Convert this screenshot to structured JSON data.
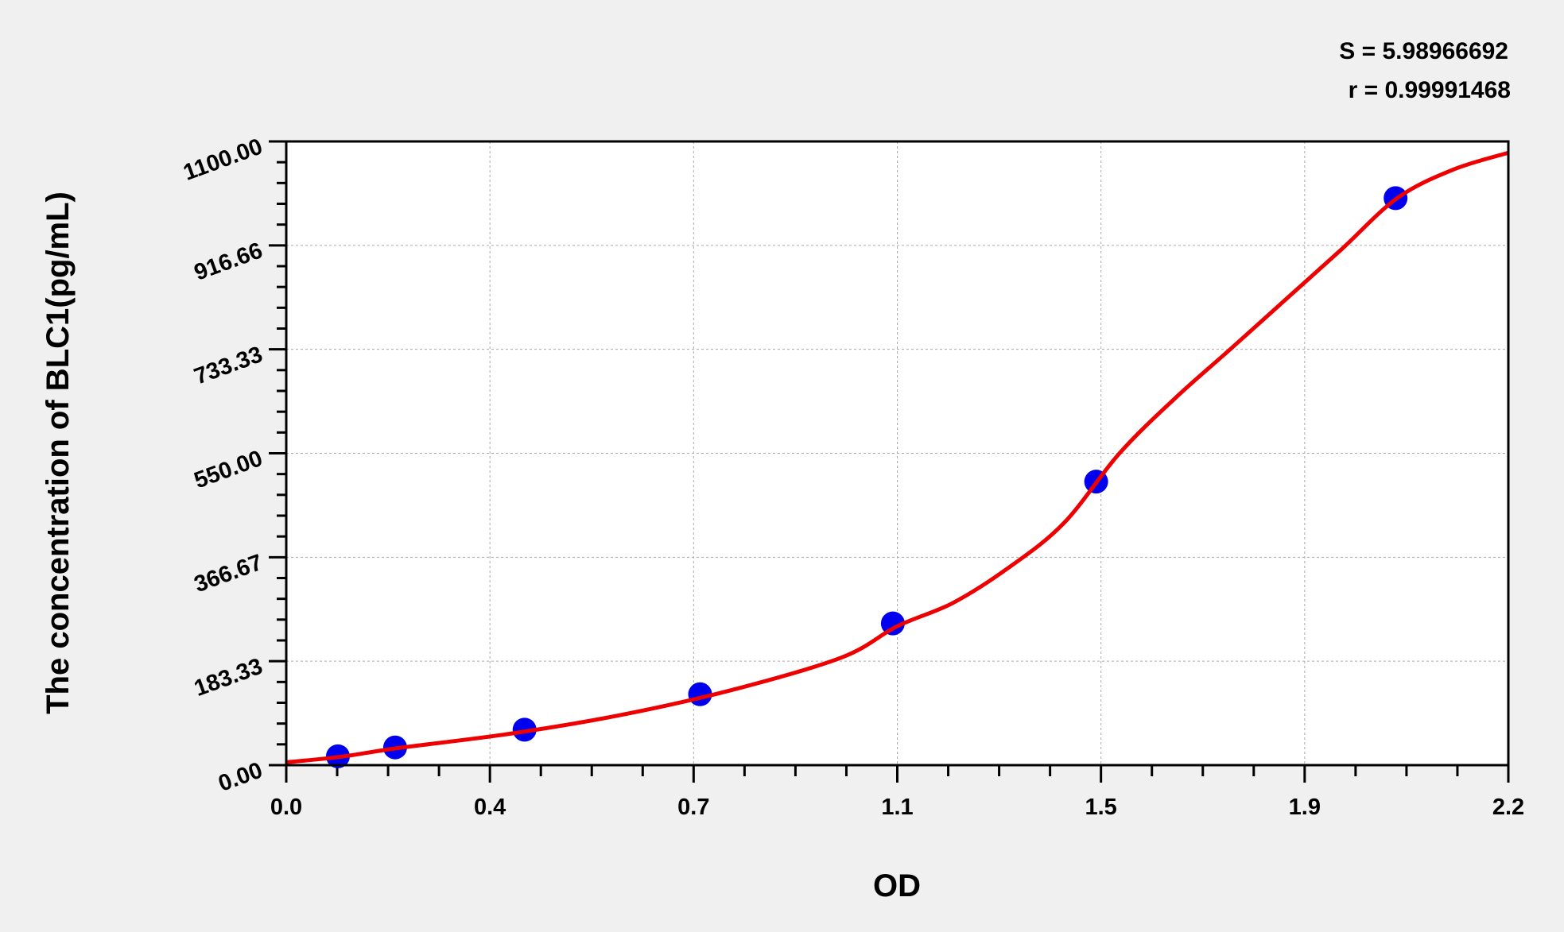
{
  "chart_data": {
    "type": "scatter",
    "title": "",
    "xlabel": "OD",
    "ylabel": "The concentration of BLC1(pg/mL)",
    "xlim": [
      0,
      2.2
    ],
    "ylim": [
      0,
      1100
    ],
    "x_tick_labels": [
      "0.0",
      "0.4",
      "0.7",
      "1.1",
      "1.5",
      "1.9",
      "2.2"
    ],
    "y_tick_labels": [
      "0.00",
      "183.33",
      "366.67",
      "550.00",
      "733.33",
      "916.66",
      "1100.00"
    ],
    "grid": true,
    "points": {
      "x": [
        0.093,
        0.196,
        0.429,
        0.745,
        1.092,
        1.458,
        1.997
      ],
      "y": [
        15.63,
        31.25,
        62.5,
        125,
        250,
        500,
        1000
      ]
    },
    "fit_curve": {
      "x": [
        0,
        0.1,
        0.2,
        0.4,
        0.6,
        0.8,
        1.0,
        1.1,
        1.2,
        1.3,
        1.4,
        1.5,
        1.6,
        1.7,
        1.8,
        1.9,
        2.0,
        2.1,
        2.2
      ],
      "y": [
        5,
        15,
        30,
        55,
        88,
        132,
        190,
        245,
        286,
        348,
        427,
        550,
        647,
        734,
        822,
        910,
        1000,
        1050,
        1080
      ]
    },
    "annotations": {
      "s_value": "S = 5.98966692",
      "r_value": "r = 0.99991468"
    },
    "colors": {
      "points": "#0000ee",
      "curve": "#ee0000",
      "background": "#f0f0f0",
      "plot_area": "#ffffff"
    }
  }
}
